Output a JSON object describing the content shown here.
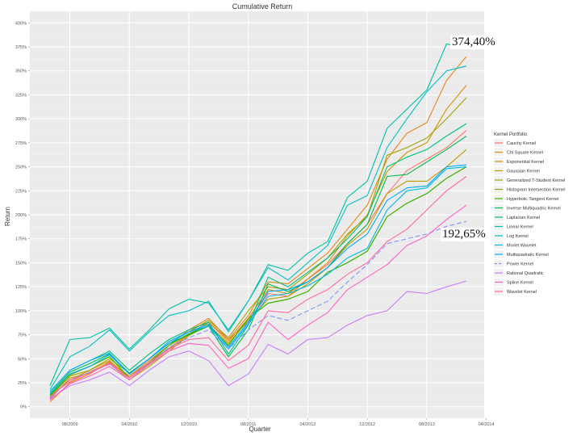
{
  "chart_data": {
    "type": "line",
    "title": "Cumulative Return",
    "xlabel": "Quarter",
    "ylabel": "Return",
    "ylim": [
      -12,
      412
    ],
    "yticks": [
      0,
      25,
      50,
      75,
      100,
      125,
      150,
      175,
      200,
      225,
      250,
      275,
      300,
      325,
      350,
      375,
      400
    ],
    "ytick_labels": [
      "0%",
      "25%",
      "50%",
      "75%",
      "100%",
      "125%",
      "150%",
      "175%",
      "200%",
      "225%",
      "250%",
      "275%",
      "300%",
      "325%",
      "350%",
      "375%",
      "400%"
    ],
    "xtick_labels": [
      "08/2009",
      "04/2010",
      "12/2010",
      "08/2011",
      "04/2012",
      "12/2012",
      "08/2013",
      "04/2014"
    ],
    "grid": true,
    "legend_title": "Kernel Portfolio",
    "legend_position": "right",
    "annotations": [
      "374,40%",
      "192,65%"
    ],
    "series": [
      {
        "name": "Cauchy Kernel",
        "color": "#F8766D",
        "dash": false,
        "values": [
          12,
          26,
          36,
          46,
          32,
          46,
          61,
          76,
          88,
          70,
          88,
          118,
          115,
          133,
          148,
          170,
          190,
          222,
          246,
          258,
          270,
          288
        ]
      },
      {
        "name": "Chi Square Kernel",
        "color": "#E7861B",
        "dash": false,
        "values": [
          5,
          25,
          34,
          47,
          32,
          48,
          64,
          80,
          92,
          70,
          95,
          130,
          128,
          144,
          160,
          185,
          210,
          258,
          285,
          296,
          340,
          365
        ]
      },
      {
        "name": "Exponential Kernel",
        "color": "#D39200",
        "dash": false,
        "values": [
          10,
          28,
          38,
          48,
          30,
          45,
          60,
          75,
          88,
          68,
          92,
          122,
          118,
          133,
          150,
          178,
          200,
          245,
          265,
          275,
          310,
          335
        ]
      },
      {
        "name": "Gaussian Kernel",
        "color": "#BE9C00",
        "dash": false,
        "values": [
          8,
          30,
          35,
          45,
          28,
          42,
          58,
          74,
          85,
          66,
          90,
          112,
          115,
          128,
          145,
          168,
          185,
          222,
          235,
          235,
          250,
          268
        ]
      },
      {
        "name": "Generalized T-Student Kernel",
        "color": "#A3A500",
        "dash": false,
        "values": [
          10,
          32,
          38,
          50,
          35,
          50,
          66,
          78,
          90,
          72,
          100,
          125,
          122,
          138,
          155,
          180,
          198,
          262,
          270,
          280,
          300,
          322
        ]
      },
      {
        "name": "Histogram Intersection Kernel",
        "color": "#7CAE00",
        "dash": false,
        "values": [
          11,
          33,
          42,
          52,
          30,
          46,
          64,
          76,
          84,
          64,
          92,
          108,
          112,
          120,
          140,
          150,
          162,
          198,
          212,
          222,
          238,
          250
        ]
      },
      {
        "name": "Hyperbolic Tangent Kernel",
        "color": "#39B600",
        "dash": false,
        "values": [
          12,
          34,
          42,
          52,
          30,
          46,
          64,
          76,
          84,
          64,
          92,
          108,
          112,
          120,
          140,
          150,
          162,
          198,
          212,
          222,
          238,
          250
        ]
      },
      {
        "name": "Inverse Multiquadric Kernel",
        "color": "#00BB4E",
        "dash": false,
        "values": [
          14,
          36,
          45,
          55,
          35,
          50,
          66,
          75,
          84,
          52,
          80,
          128,
          120,
          130,
          145,
          170,
          190,
          240,
          242,
          255,
          268,
          282
        ]
      },
      {
        "name": "Laplacian Kernel",
        "color": "#00BF7D",
        "dash": false,
        "values": [
          16,
          38,
          48,
          58,
          38,
          55,
          70,
          80,
          88,
          55,
          85,
          135,
          125,
          140,
          155,
          175,
          198,
          250,
          260,
          268,
          282,
          295
        ]
      },
      {
        "name": "Linear Kernel",
        "color": "#00C1A3",
        "dash": false,
        "values": [
          22,
          70,
          72,
          82,
          60,
          80,
          102,
          112,
          108,
          80,
          110,
          148,
          142,
          160,
          172,
          218,
          235,
          290,
          310,
          330,
          378,
          374
        ]
      },
      {
        "name": "Log Kernel",
        "color": "#00BFC4",
        "dash": false,
        "values": [
          18,
          52,
          63,
          80,
          58,
          78,
          95,
          100,
          110,
          78,
          110,
          145,
          132,
          150,
          168,
          210,
          220,
          270,
          300,
          328,
          350,
          355
        ]
      },
      {
        "name": "Morlet Wavelet",
        "color": "#00B8E7",
        "dash": false,
        "values": [
          13,
          34,
          42,
          54,
          34,
          50,
          66,
          78,
          84,
          60,
          86,
          115,
          118,
          126,
          138,
          155,
          165,
          205,
          225,
          228,
          248,
          250
        ]
      },
      {
        "name": "Multiquadratic Kernel",
        "color": "#00A9FF",
        "dash": false,
        "values": [
          16,
          38,
          48,
          56,
          34,
          50,
          68,
          78,
          86,
          62,
          88,
          120,
          122,
          130,
          145,
          165,
          180,
          215,
          228,
          230,
          250,
          252
        ]
      },
      {
        "name": "Power Kernel",
        "color": "#8494FF",
        "dash": true,
        "values": [
          9,
          28,
          36,
          44,
          30,
          44,
          62,
          72,
          80,
          60,
          80,
          95,
          90,
          100,
          110,
          130,
          148,
          170,
          175,
          180,
          188,
          193
        ]
      },
      {
        "name": "Rational Quadratic",
        "color": "#C77CFF",
        "dash": false,
        "values": [
          8,
          22,
          28,
          36,
          22,
          38,
          52,
          58,
          48,
          22,
          34,
          65,
          55,
          70,
          72,
          85,
          95,
          100,
          120,
          118,
          125,
          131
        ]
      },
      {
        "name": "Spline Kernel",
        "color": "#FF61C3",
        "dash": false,
        "values": [
          7,
          24,
          32,
          42,
          28,
          44,
          58,
          66,
          64,
          40,
          50,
          88,
          70,
          85,
          98,
          122,
          135,
          148,
          168,
          178,
          195,
          210
        ]
      },
      {
        "name": "Wavelet Kernel",
        "color": "#FF689F",
        "dash": false,
        "values": [
          10,
          28,
          35,
          45,
          30,
          46,
          60,
          70,
          72,
          48,
          64,
          100,
          98,
          112,
          122,
          138,
          150,
          172,
          185,
          205,
          225,
          240
        ]
      }
    ]
  }
}
